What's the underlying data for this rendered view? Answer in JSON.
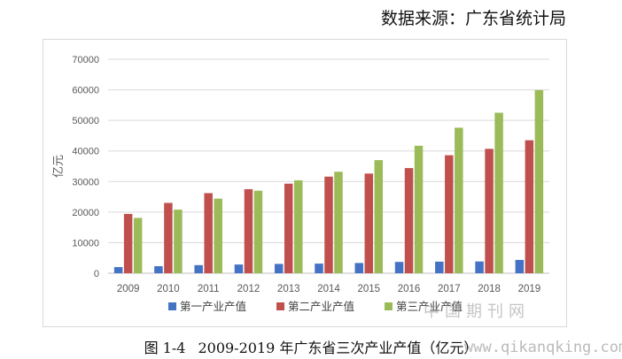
{
  "source": "数据来源：广东省统计局",
  "caption": {
    "figure_number": "图 1-4",
    "text": "2009-2019 年广东省三次产业产值（亿元）"
  },
  "watermark": {
    "site_name": "中国期刊网",
    "url": "www.qikanqking.com"
  },
  "colors": {
    "primary": "#4472C4",
    "secondary": "#C0504D",
    "tertiary": "#9BBB59",
    "grid": "#d9d9d9",
    "axis_text": "#595959"
  },
  "chart_data": {
    "type": "bar",
    "title": "",
    "xlabel": "",
    "ylabel": "亿元",
    "ylim": [
      0,
      70000
    ],
    "yticks": [
      0,
      10000,
      20000,
      30000,
      40000,
      50000,
      60000,
      70000
    ],
    "grid": true,
    "legend_position": "bottom",
    "categories": [
      "2009",
      "2010",
      "2011",
      "2012",
      "2013",
      "2014",
      "2015",
      "2016",
      "2017",
      "2018",
      "2019"
    ],
    "series": [
      {
        "name": "第一产业产值",
        "color": "#4472C4",
        "values": [
          2000,
          2300,
          2650,
          2850,
          3050,
          3150,
          3350,
          3700,
          3800,
          3850,
          4350
        ]
      },
      {
        "name": "第二产业产值",
        "color": "#C0504D",
        "values": [
          19400,
          23000,
          26200,
          27500,
          29300,
          31600,
          32600,
          34400,
          38600,
          40700,
          43500
        ]
      },
      {
        "name": "第三产业产值",
        "color": "#9BBB59",
        "values": [
          18100,
          20800,
          24400,
          27000,
          30400,
          33200,
          37000,
          41700,
          47600,
          52500,
          59900
        ]
      }
    ]
  }
}
